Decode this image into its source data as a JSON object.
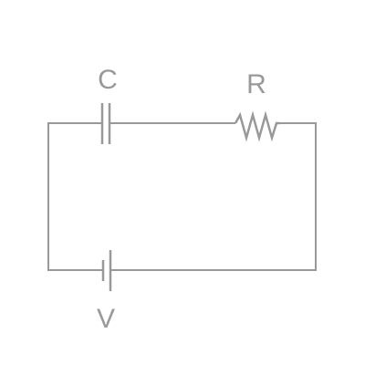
{
  "circuit": {
    "components": {
      "capacitor": {
        "symbol": "capacitor",
        "label": "C"
      },
      "resistor": {
        "symbol": "resistor",
        "label": "R"
      },
      "battery": {
        "symbol": "battery",
        "label": "V"
      }
    },
    "line_color": "#999999",
    "background": "#ffffff"
  }
}
